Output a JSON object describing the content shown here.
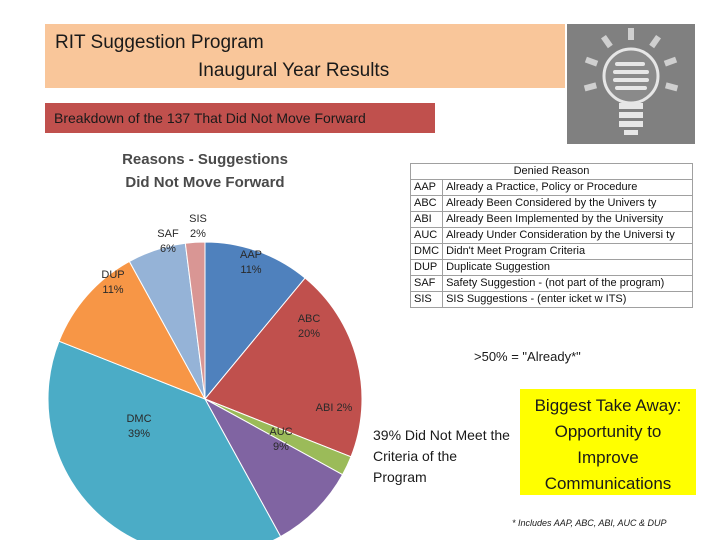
{
  "header": {
    "title_line1": "RIT Suggestion Program",
    "title_line2": "Inaugural Year Results",
    "subtitle": "Breakdown of the 137 That Did Not Move Forward"
  },
  "icon": "lightbulb-icon",
  "chart_data": {
    "type": "pie",
    "title": "Reasons - Suggestions Did Not Move Forward",
    "title_line1": "Reasons - Suggestions",
    "title_line2": "Did Not Move Forward",
    "slices": [
      {
        "label": "AAP",
        "pct_label": "11%",
        "value": 11,
        "color": "#4f81bd"
      },
      {
        "label": "ABC",
        "pct_label": "20%",
        "value": 20,
        "color": "#c0504d"
      },
      {
        "label": "ABI",
        "pct_label": "2%",
        "value": 2,
        "color": "#9bbb59"
      },
      {
        "label": "AUC",
        "pct_label": "9%",
        "value": 9,
        "color": "#8064a2"
      },
      {
        "label": "DMC",
        "pct_label": "39%",
        "value": 39,
        "color": "#4bacc6"
      },
      {
        "label": "DUP",
        "pct_label": "11%",
        "value": 11,
        "color": "#f79646"
      },
      {
        "label": "SAF",
        "pct_label": "6%",
        "value": 6,
        "color": "#95b3d7"
      },
      {
        "label": "SIS",
        "pct_label": "2%",
        "value": 2,
        "color": "#d99694"
      }
    ]
  },
  "legend": {
    "header": "Denied Reason",
    "rows": [
      {
        "code": "AAP",
        "text": "Already a Practice, Policy or Procedure"
      },
      {
        "code": "ABC",
        "text": "Already Been Considered by the Univers ty"
      },
      {
        "code": "ABI",
        "text": "Already Been Implemented by the University"
      },
      {
        "code": "AUC",
        "text": "Already Under Consideration by the Universi ty"
      },
      {
        "code": "DMC",
        "text": "Didn't Meet Program Criteria"
      },
      {
        "code": "DUP",
        "text": "Duplicate Suggestion"
      },
      {
        "code": "SAF",
        "text": "Safety Suggestion - (not part of the program)"
      },
      {
        "code": "SIS",
        "text": "SIS Suggestions - (enter  icket w ITS)"
      }
    ]
  },
  "notes": {
    "already": ">50% = \"Already*\"",
    "criteria": "39% Did Not Meet the Criteria of the Program",
    "footnote": "* Includes AAP, ABC, ABI, AUC & DUP"
  },
  "takeaway": {
    "lines": [
      "Biggest Take Away:",
      "Opportunity to",
      "Improve",
      "Communications"
    ],
    "bg_color": "#ffff00"
  }
}
